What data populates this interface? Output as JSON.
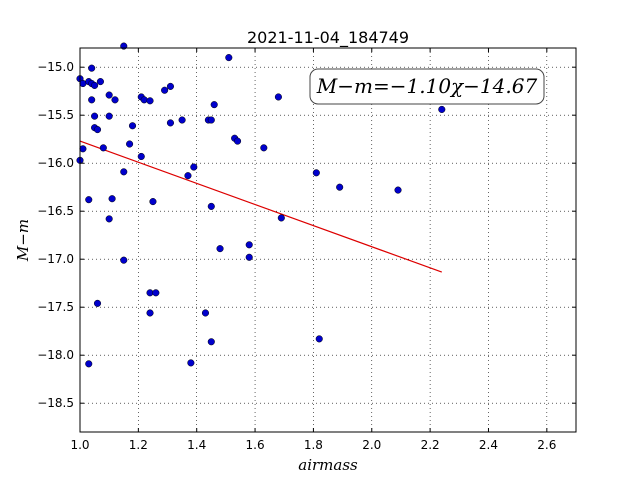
{
  "chart_data": {
    "type": "scatter",
    "title": "2021-11-04_184749",
    "xlabel": "airmass",
    "ylabel": "M−m",
    "xlim": [
      1.0,
      2.7
    ],
    "ylim": [
      -18.8,
      -14.8
    ],
    "y_inverted": false,
    "grid": true,
    "x_ticks": [
      1.0,
      1.2,
      1.4,
      1.6,
      1.8,
      2.0,
      2.2,
      2.4,
      2.6
    ],
    "x_tick_labels": [
      "1.0",
      "1.2",
      "1.4",
      "1.6",
      "1.8",
      "2.0",
      "2.2",
      "2.4",
      "2.6"
    ],
    "y_ticks": [
      -15.0,
      -15.5,
      -16.0,
      -16.5,
      -17.0,
      -17.5,
      -18.0,
      -18.5
    ],
    "y_tick_labels": [
      "−15.0",
      "−15.5",
      "−16.0",
      "−16.5",
      "−17.0",
      "−17.5",
      "−18.0",
      "−18.5"
    ],
    "colors": {
      "points": "#0000cc",
      "point_edge": "#000000",
      "fit_line": "#dd0000",
      "grid": "#000000"
    },
    "annotation": "M−m=−1.10χ−14.67",
    "fit": {
      "slope": -1.1,
      "intercept": -14.67,
      "x_range": [
        1.0,
        2.24
      ]
    },
    "points": [
      {
        "x": 1.0,
        "y": -15.12
      },
      {
        "x": 1.01,
        "y": -15.17
      },
      {
        "x": 1.0,
        "y": -15.97
      },
      {
        "x": 1.01,
        "y": -15.85
      },
      {
        "x": 1.03,
        "y": -15.15
      },
      {
        "x": 1.04,
        "y": -15.01
      },
      {
        "x": 1.04,
        "y": -15.17
      },
      {
        "x": 1.05,
        "y": -15.19
      },
      {
        "x": 1.04,
        "y": -15.34
      },
      {
        "x": 1.05,
        "y": -15.51
      },
      {
        "x": 1.05,
        "y": -15.63
      },
      {
        "x": 1.06,
        "y": -15.65
      },
      {
        "x": 1.07,
        "y": -15.15
      },
      {
        "x": 1.08,
        "y": -15.84
      },
      {
        "x": 1.1,
        "y": -15.29
      },
      {
        "x": 1.1,
        "y": -15.51
      },
      {
        "x": 1.12,
        "y": -15.34
      },
      {
        "x": 1.03,
        "y": -16.38
      },
      {
        "x": 1.11,
        "y": -16.37
      },
      {
        "x": 1.1,
        "y": -16.58
      },
      {
        "x": 1.15,
        "y": -16.09
      },
      {
        "x": 1.15,
        "y": -14.78
      },
      {
        "x": 1.17,
        "y": -15.8
      },
      {
        "x": 1.18,
        "y": -15.61
      },
      {
        "x": 1.21,
        "y": -15.31
      },
      {
        "x": 1.22,
        "y": -15.34
      },
      {
        "x": 1.24,
        "y": -15.35
      },
      {
        "x": 1.21,
        "y": -15.93
      },
      {
        "x": 1.25,
        "y": -16.4
      },
      {
        "x": 1.15,
        "y": -17.01
      },
      {
        "x": 1.06,
        "y": -17.46
      },
      {
        "x": 1.03,
        "y": -18.09
      },
      {
        "x": 1.24,
        "y": -17.35
      },
      {
        "x": 1.26,
        "y": -17.35
      },
      {
        "x": 1.24,
        "y": -17.56
      },
      {
        "x": 1.29,
        "y": -15.24
      },
      {
        "x": 1.31,
        "y": -15.2
      },
      {
        "x": 1.31,
        "y": -15.58
      },
      {
        "x": 1.35,
        "y": -15.55
      },
      {
        "x": 1.37,
        "y": -16.13
      },
      {
        "x": 1.39,
        "y": -16.04
      },
      {
        "x": 1.38,
        "y": -18.08
      },
      {
        "x": 1.43,
        "y": -17.56
      },
      {
        "x": 1.44,
        "y": -15.55
      },
      {
        "x": 1.45,
        "y": -15.55
      },
      {
        "x": 1.46,
        "y": -15.39
      },
      {
        "x": 1.45,
        "y": -16.45
      },
      {
        "x": 1.45,
        "y": -17.86
      },
      {
        "x": 1.48,
        "y": -16.89
      },
      {
        "x": 1.51,
        "y": -14.9
      },
      {
        "x": 1.53,
        "y": -15.74
      },
      {
        "x": 1.54,
        "y": -15.77
      },
      {
        "x": 1.58,
        "y": -16.85
      },
      {
        "x": 1.58,
        "y": -16.98
      },
      {
        "x": 1.63,
        "y": -15.84
      },
      {
        "x": 1.68,
        "y": -15.31
      },
      {
        "x": 1.69,
        "y": -16.57
      },
      {
        "x": 1.81,
        "y": -16.1
      },
      {
        "x": 1.82,
        "y": -17.83
      },
      {
        "x": 1.89,
        "y": -16.25
      },
      {
        "x": 2.09,
        "y": -16.28
      },
      {
        "x": 2.24,
        "y": -15.44
      }
    ]
  }
}
